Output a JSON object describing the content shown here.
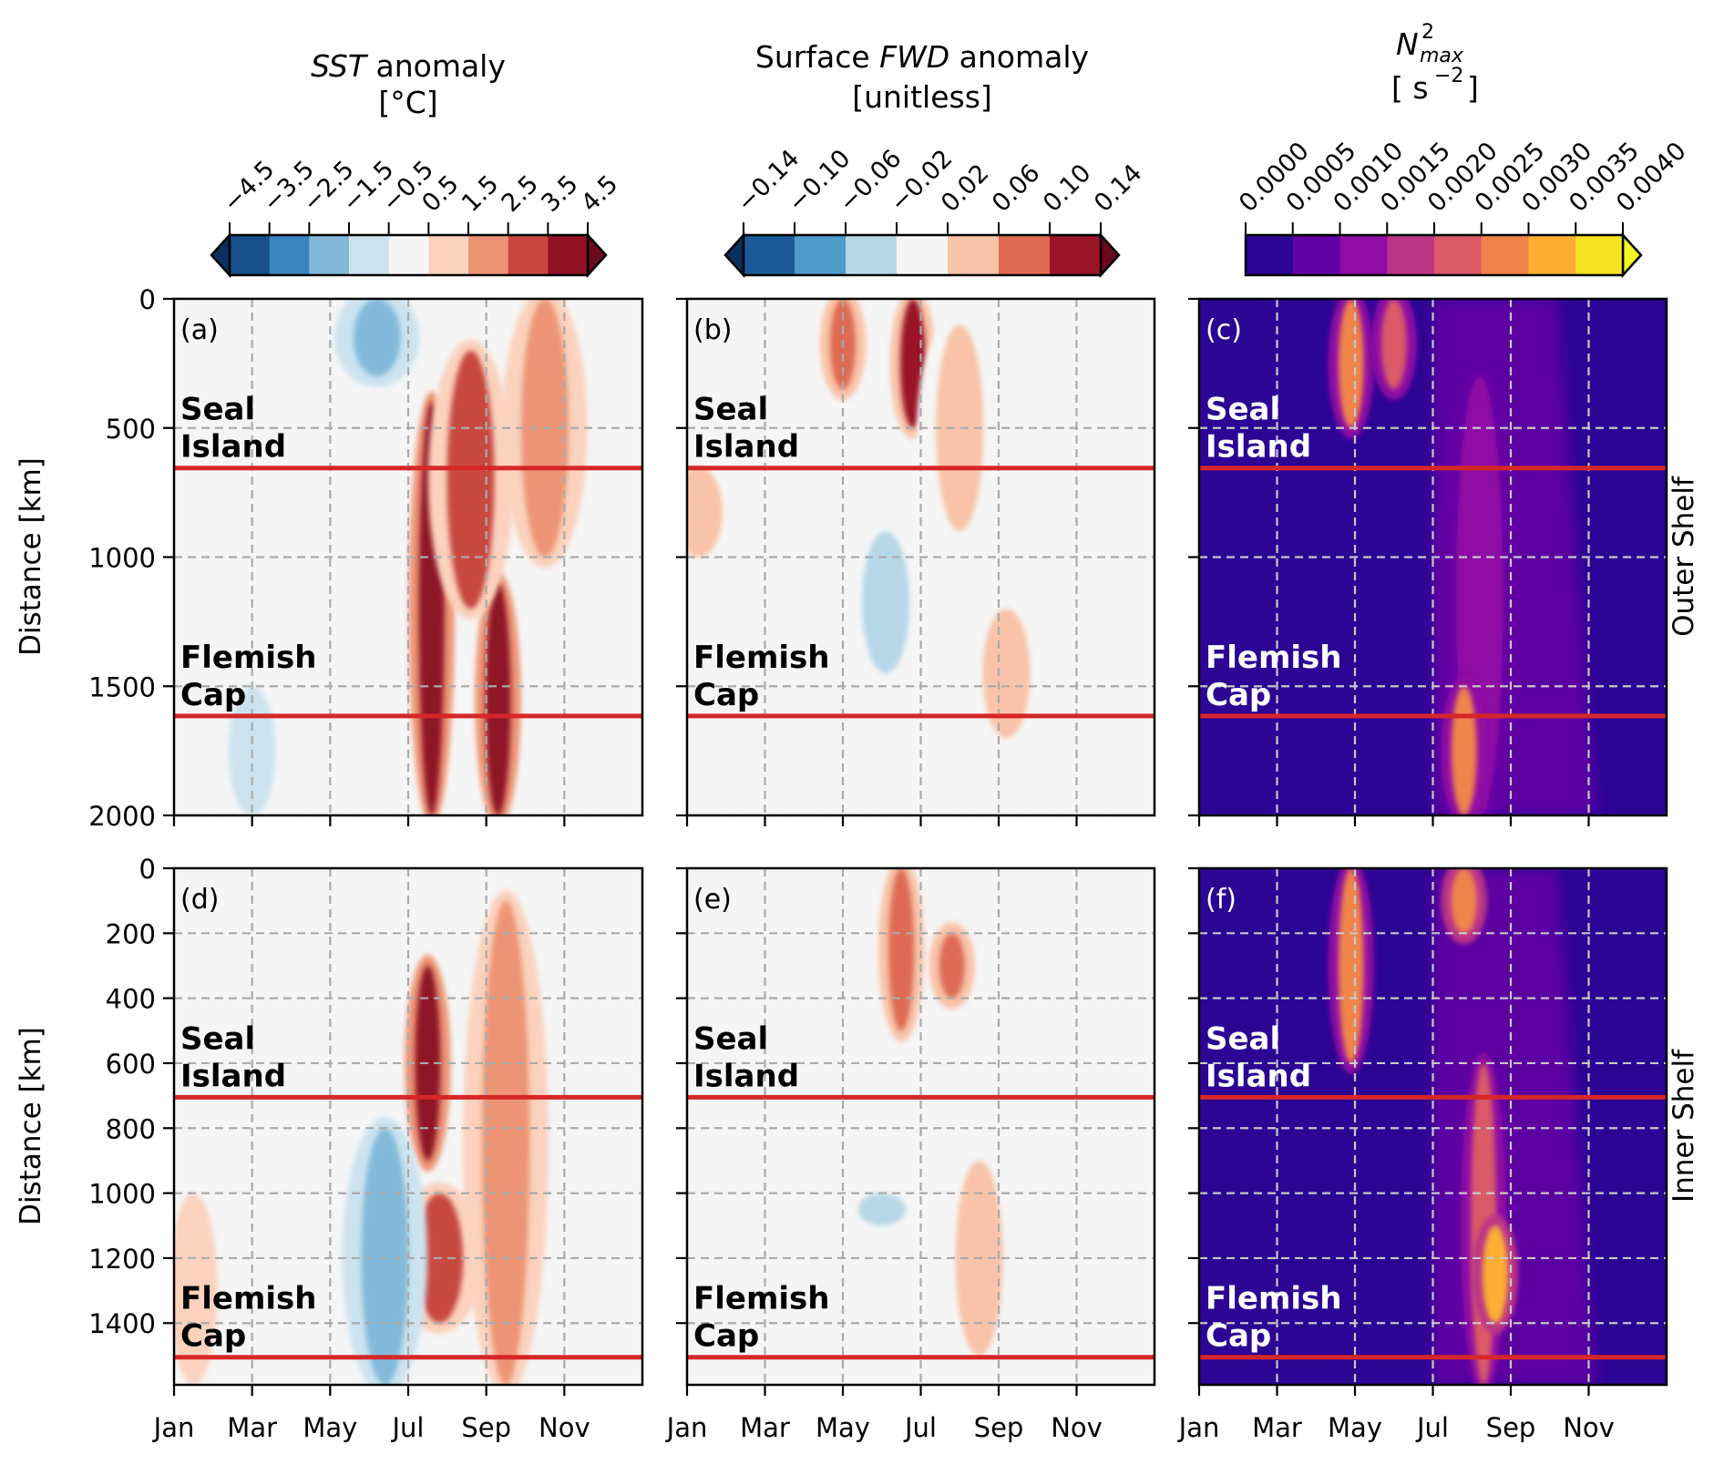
{
  "figure": {
    "row_labels": [
      "Outer Shelf",
      "Inner Shelf"
    ],
    "ylabel": "Distance [km]",
    "month_ticks": [
      "Jan",
      "Mar",
      "May",
      "Jul",
      "Sep",
      "Nov"
    ]
  },
  "colorbars": [
    {
      "title_italic": "SST",
      "title_rest": " anomaly",
      "units": "[°C]",
      "ticks": [
        "−4.5",
        "−3.5",
        "−2.5",
        "−1.5",
        "−0.5",
        "0.5",
        "1.5",
        "2.5",
        "3.5",
        "4.5"
      ],
      "colors": [
        "#164f8c",
        "#3a84bf",
        "#82b9da",
        "#cce3ef",
        "#f5f5f5",
        "#fad2bd",
        "#ed9474",
        "#c8483f",
        "#8f1225"
      ],
      "extend_low": "#0c2f5e",
      "extend_high": "#6a0a1e",
      "extend": "both"
    },
    {
      "title_rest_pre": "Surface ",
      "title_italic": "FWD",
      "title_rest": " anomaly",
      "units": "[unitless]",
      "ticks": [
        "−0.14",
        "−0.10",
        "−0.06",
        "−0.02",
        "0.02",
        "0.06",
        "0.10",
        "0.14"
      ],
      "colors": [
        "#1c5a9a",
        "#4f9bc9",
        "#b5d7e8",
        "#f5f5f5",
        "#f8c3a8",
        "#de6a52",
        "#9a1428"
      ],
      "extend_low": "#0c2f5e",
      "extend_high": "#6a0a1e",
      "extend": "both"
    },
    {
      "title_main": "N",
      "title_sup": "2",
      "title_sub": "max",
      "units_pre": "[ s",
      "units_sup": "−2",
      "units_post": "]",
      "ticks": [
        "0.0000",
        "0.0005",
        "0.0010",
        "0.0015",
        "0.0020",
        "0.0025",
        "0.0030",
        "0.0035",
        "0.0040"
      ],
      "colors": [
        "#2c0594",
        "#6200a4",
        "#8f0da4",
        "#bb3587",
        "#da5a68",
        "#f0844b",
        "#fcaf32",
        "#f6e423"
      ],
      "extend_high": "#eff821",
      "extend": "max"
    }
  ],
  "chart_data": [
    {
      "type": "heatmap",
      "panel": "(a)",
      "row": "Outer Shelf",
      "variable": "SST anomaly [°C]",
      "xlabel": "",
      "ylabel": "Distance [km]",
      "x_range": [
        "Jan",
        "Dec"
      ],
      "x_ticks": [
        "Jan",
        "Mar",
        "May",
        "Jul",
        "Sep",
        "Nov"
      ],
      "y_range": [
        0,
        2000
      ],
      "y_ticks": [
        0,
        500,
        1000,
        1500,
        2000
      ],
      "y_inverted": true,
      "grid": "dashed",
      "markers": [
        {
          "label": "Seal Island",
          "distance_km": 655
        },
        {
          "label": "Flemish Cap",
          "distance_km": 1615
        }
      ],
      "features": [
        {
          "month": 7.6,
          "dist_from": 400,
          "dist_to": 2000,
          "level": 4.0,
          "note": "strong warm band mid-Jul"
        },
        {
          "month": 9.3,
          "dist_from": 1100,
          "dist_to": 2000,
          "level": 3.5,
          "note": "warm band early Sep"
        },
        {
          "month": 8.6,
          "dist_from": 200,
          "dist_to": 1200,
          "level": 2.5
        },
        {
          "month": 10.5,
          "dist_from": 0,
          "dist_to": 1000,
          "level": 1.5
        },
        {
          "month": 6.2,
          "dist_from": 0,
          "dist_to": 300,
          "level": -2.5,
          "note": "cold patch late Jun"
        },
        {
          "month": 3.0,
          "dist_from": 1500,
          "dist_to": 2000,
          "level": -1.0
        }
      ]
    },
    {
      "type": "heatmap",
      "panel": "(b)",
      "row": "Outer Shelf",
      "variable": "Surface FWD anomaly [unitless]",
      "x_range": [
        "Jan",
        "Dec"
      ],
      "x_ticks": [
        "Jan",
        "Mar",
        "May",
        "Jul",
        "Sep",
        "Nov"
      ],
      "y_range": [
        0,
        2000
      ],
      "y_ticks": [
        0,
        500,
        1000,
        1500,
        2000
      ],
      "y_inverted": true,
      "grid": "dashed",
      "markers": [
        {
          "label": "Seal Island",
          "distance_km": 655
        },
        {
          "label": "Flemish Cap",
          "distance_km": 1615
        }
      ],
      "features": [
        {
          "month": 5.0,
          "dist_from": 0,
          "dist_to": 350,
          "level": 0.08
        },
        {
          "month": 6.8,
          "dist_from": 0,
          "dist_to": 500,
          "level": 0.1
        },
        {
          "month": 8.0,
          "dist_from": 100,
          "dist_to": 900,
          "level": 0.04
        },
        {
          "month": 1.3,
          "dist_from": 650,
          "dist_to": 1000,
          "level": 0.04
        },
        {
          "month": 9.2,
          "dist_from": 1200,
          "dist_to": 1700,
          "level": 0.04
        },
        {
          "month": 6.1,
          "dist_from": 900,
          "dist_to": 1450,
          "level": -0.04
        }
      ]
    },
    {
      "type": "heatmap",
      "panel": "(c)",
      "row": "Outer Shelf",
      "variable": "N2max [s^-2]",
      "x_range": [
        "Jan",
        "Dec"
      ],
      "x_ticks": [
        "Jan",
        "Mar",
        "May",
        "Jul",
        "Sep",
        "Nov"
      ],
      "y_range": [
        0,
        2000
      ],
      "y_ticks": [
        0,
        500,
        1000,
        1500,
        2000
      ],
      "y_inverted": true,
      "grid": "dashed",
      "markers": [
        {
          "label": "Seal Island",
          "distance_km": 655
        },
        {
          "label": "Flemish Cap",
          "distance_km": 1615
        }
      ],
      "features": [
        {
          "month": 4.9,
          "dist_from": 0,
          "dist_to": 500,
          "level": 0.0025
        },
        {
          "month": 6.0,
          "dist_from": 0,
          "dist_to": 350,
          "level": 0.0022
        },
        {
          "month": 8.2,
          "dist_from": 300,
          "dist_to": 2000,
          "level": 0.0013
        },
        {
          "month": 7.8,
          "dist_from": 1500,
          "dist_to": 2000,
          "level": 0.0025
        }
      ]
    },
    {
      "type": "heatmap",
      "panel": "(d)",
      "row": "Inner Shelf",
      "variable": "SST anomaly [°C]",
      "x_range": [
        "Jan",
        "Dec"
      ],
      "x_ticks": [
        "Jan",
        "Mar",
        "May",
        "Jul",
        "Sep",
        "Nov"
      ],
      "y_range": [
        0,
        1590
      ],
      "y_ticks": [
        0,
        200,
        400,
        600,
        800,
        1000,
        1200,
        1400
      ],
      "y_inverted": true,
      "grid": "dashed",
      "markers": [
        {
          "label": "Seal Island",
          "distance_km": 705
        },
        {
          "label": "Flemish Cap",
          "distance_km": 1505
        }
      ],
      "features": [
        {
          "month": 7.5,
          "dist_from": 300,
          "dist_to": 900,
          "level": 4.0
        },
        {
          "month": 7.8,
          "dist_from": 1000,
          "dist_to": 1400,
          "level": 3.0
        },
        {
          "month": 6.4,
          "dist_from": 800,
          "dist_to": 1590,
          "level": -2.5,
          "note": "cold band Jun"
        },
        {
          "month": 9.5,
          "dist_from": 100,
          "dist_to": 1590,
          "level": 1.5
        },
        {
          "month": 1.5,
          "dist_from": 1000,
          "dist_to": 1590,
          "level": 1.0
        }
      ]
    },
    {
      "type": "heatmap",
      "panel": "(e)",
      "row": "Inner Shelf",
      "variable": "Surface FWD anomaly [unitless]",
      "x_range": [
        "Jan",
        "Dec"
      ],
      "x_ticks": [
        "Jan",
        "Mar",
        "May",
        "Jul",
        "Sep",
        "Nov"
      ],
      "y_range": [
        0,
        1590
      ],
      "y_ticks": [
        0,
        200,
        400,
        600,
        800,
        1000,
        1200,
        1400
      ],
      "y_inverted": true,
      "grid": "dashed",
      "markers": [
        {
          "label": "Seal Island",
          "distance_km": 705
        },
        {
          "label": "Flemish Cap",
          "distance_km": 1505
        }
      ],
      "features": [
        {
          "month": 6.5,
          "dist_from": 0,
          "dist_to": 500,
          "level": 0.08
        },
        {
          "month": 7.8,
          "dist_from": 200,
          "dist_to": 400,
          "level": 0.08
        },
        {
          "month": 8.5,
          "dist_from": 900,
          "dist_to": 1500,
          "level": 0.04
        },
        {
          "month": 6.0,
          "dist_from": 1000,
          "dist_to": 1100,
          "level": -0.04
        }
      ]
    },
    {
      "type": "heatmap",
      "panel": "(f)",
      "row": "Inner Shelf",
      "variable": "N2max [s^-2]",
      "x_range": [
        "Jan",
        "Dec"
      ],
      "x_ticks": [
        "Jan",
        "Mar",
        "May",
        "Jul",
        "Sep",
        "Nov"
      ],
      "y_range": [
        0,
        1590
      ],
      "y_ticks": [
        0,
        200,
        400,
        600,
        800,
        1000,
        1200,
        1400
      ],
      "y_inverted": true,
      "grid": "dashed",
      "markers": [
        {
          "label": "Seal Island",
          "distance_km": 705
        },
        {
          "label": "Flemish Cap",
          "distance_km": 1505
        }
      ],
      "features": [
        {
          "month": 4.9,
          "dist_from": 0,
          "dist_to": 600,
          "level": 0.0025
        },
        {
          "month": 8.3,
          "dist_from": 600,
          "dist_to": 1590,
          "level": 0.0022
        },
        {
          "month": 8.6,
          "dist_from": 1100,
          "dist_to": 1400,
          "level": 0.003
        },
        {
          "month": 7.8,
          "dist_from": 0,
          "dist_to": 200,
          "level": 0.0028
        }
      ]
    }
  ]
}
